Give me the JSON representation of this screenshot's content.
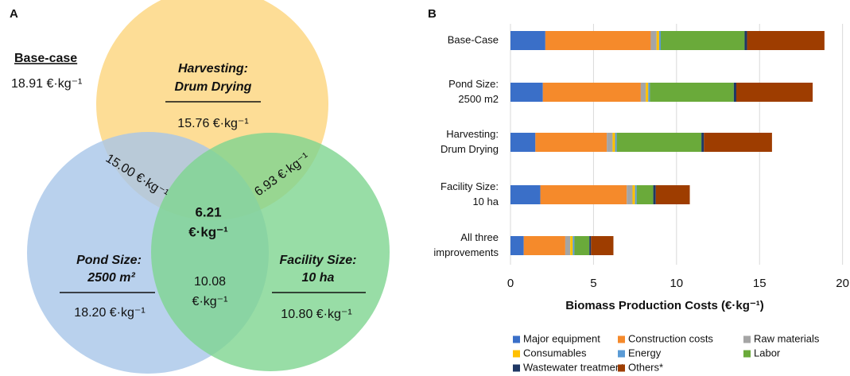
{
  "chart_data": [
    {
      "type": "venn",
      "panel": "A",
      "base_case": {
        "label": "Base-case",
        "value_label": "18.91 €·kg⁻¹"
      },
      "sets": [
        {
          "name": [
            "Harvesting:",
            "Drum Drying"
          ],
          "color": "#fdd47c",
          "label": "15.76 €·kg⁻¹"
        },
        {
          "name": [
            "Pond Size:",
            "2500 m²"
          ],
          "color": "#a8c6e8",
          "label": "18.20 €·kg⁻¹"
        },
        {
          "name": [
            "Facility Size:",
            "10 ha"
          ],
          "color": "#7ed590",
          "label": "10.80 €·kg⁻¹"
        }
      ],
      "intersections": {
        "harvesting_pond": "15.00 €·kg⁻¹",
        "harvesting_facility": "6.93 €·kg⁻¹",
        "pond_facility": [
          "10.08",
          "€·kg⁻¹"
        ],
        "all": [
          "6.21",
          "€·kg⁻¹"
        ]
      }
    },
    {
      "type": "bar",
      "orientation": "horizontal",
      "stacked": true,
      "panel": "B",
      "categories": [
        [
          "Base-Case"
        ],
        [
          "Pond Size:",
          "2500 m2"
        ],
        [
          "Harvesting:",
          "Drum Drying"
        ],
        [
          "Facility Size:",
          "10 ha"
        ],
        [
          "All three",
          "improvements"
        ]
      ],
      "series": [
        {
          "name": "Major equipment",
          "color": "#3a6fc8",
          "values": [
            2.1,
            1.95,
            1.5,
            1.8,
            0.8
          ]
        },
        {
          "name": "Construction costs",
          "color": "#f58a2b",
          "values": [
            6.35,
            5.9,
            4.3,
            5.2,
            2.5
          ]
        },
        {
          "name": "Raw materials",
          "color": "#a5a5a5",
          "values": [
            0.35,
            0.3,
            0.35,
            0.35,
            0.3
          ]
        },
        {
          "name": "Consumables",
          "color": "#ffc000",
          "values": [
            0.15,
            0.15,
            0.15,
            0.15,
            0.15
          ]
        },
        {
          "name": "Energy",
          "color": "#5b9bd5",
          "values": [
            0.1,
            0.1,
            0.1,
            0.1,
            0.1
          ]
        },
        {
          "name": "Labor",
          "color": "#6aaa3a",
          "values": [
            5.05,
            5.05,
            5.1,
            1.0,
            0.9
          ]
        },
        {
          "name": "Wastewater treatment",
          "color": "#1f3864",
          "values": [
            0.15,
            0.15,
            0.15,
            0.15,
            0.1
          ]
        },
        {
          "name": "Others*",
          "color": "#9e3d00",
          "values": [
            4.66,
            4.6,
            4.1,
            2.05,
            1.35
          ]
        }
      ],
      "xlabel": "Biomass Production Costs (€·kg⁻¹)",
      "xlim": [
        0,
        20.4
      ],
      "xticks": [
        0,
        5,
        10,
        15,
        20
      ],
      "grid": true,
      "legend": "bottom"
    }
  ]
}
